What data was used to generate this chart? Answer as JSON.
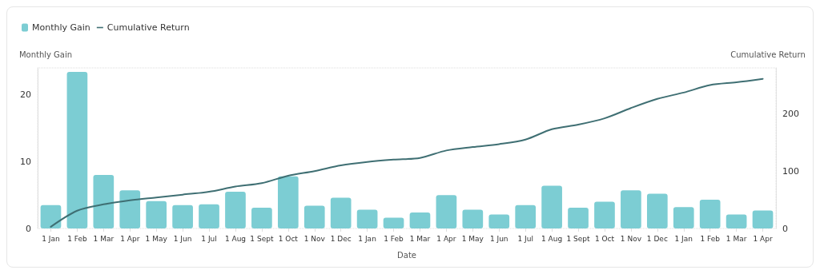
{
  "chart_data": {
    "type": "bar",
    "xlabel": "Date",
    "ylabel": "Monthly Gain",
    "y2label": "Cumulative Return",
    "categories": [
      "1 Jan",
      "1 Feb",
      "1 Mar",
      "1 Apr",
      "1 May",
      "1 Jun",
      "1 Jul",
      "1 Aug",
      "1 Sept",
      "1 Oct",
      "1 Nov",
      "1 Dec",
      "1 Jan",
      "1 Feb",
      "1 Mar",
      "1 Apr",
      "1 May",
      "1 Jun",
      "1 Jul",
      "1 Aug",
      "1 Sept",
      "1 Oct",
      "1 Nov",
      "1 Dec",
      "1 Jan",
      "1 Feb",
      "1 Mar",
      "1 Apr"
    ],
    "series": [
      {
        "name": "Monthly Gain",
        "color": "#7ccdd3",
        "values": [
          3.5,
          23.4,
          8.0,
          5.7,
          4.1,
          3.5,
          3.6,
          5.5,
          3.1,
          7.8,
          3.4,
          4.6,
          2.8,
          1.6,
          2.4,
          5.0,
          2.8,
          2.1,
          3.5,
          6.4,
          3.1,
          4.0,
          5.7,
          5.2,
          3.2,
          4.3,
          2.1,
          2.7
        ]
      },
      {
        "name": "Cumulative Return",
        "type": "line",
        "axis": "y2",
        "color": "#3f6f73",
        "values": [
          3,
          31,
          42,
          49,
          54,
          59,
          64,
          73,
          79,
          92,
          100,
          110,
          116,
          120,
          123,
          136,
          142,
          147,
          155,
          173,
          181,
          192,
          210,
          226,
          237,
          250,
          255,
          261
        ]
      }
    ],
    "ylim": [
      0,
      24
    ],
    "yticks": [
      0,
      10,
      20
    ],
    "y2lim": [
      0,
      280
    ],
    "y2ticks": [
      0,
      100,
      200
    ],
    "grid": false,
    "legend": "top left",
    "marker": "none",
    "line_style": "solid"
  }
}
